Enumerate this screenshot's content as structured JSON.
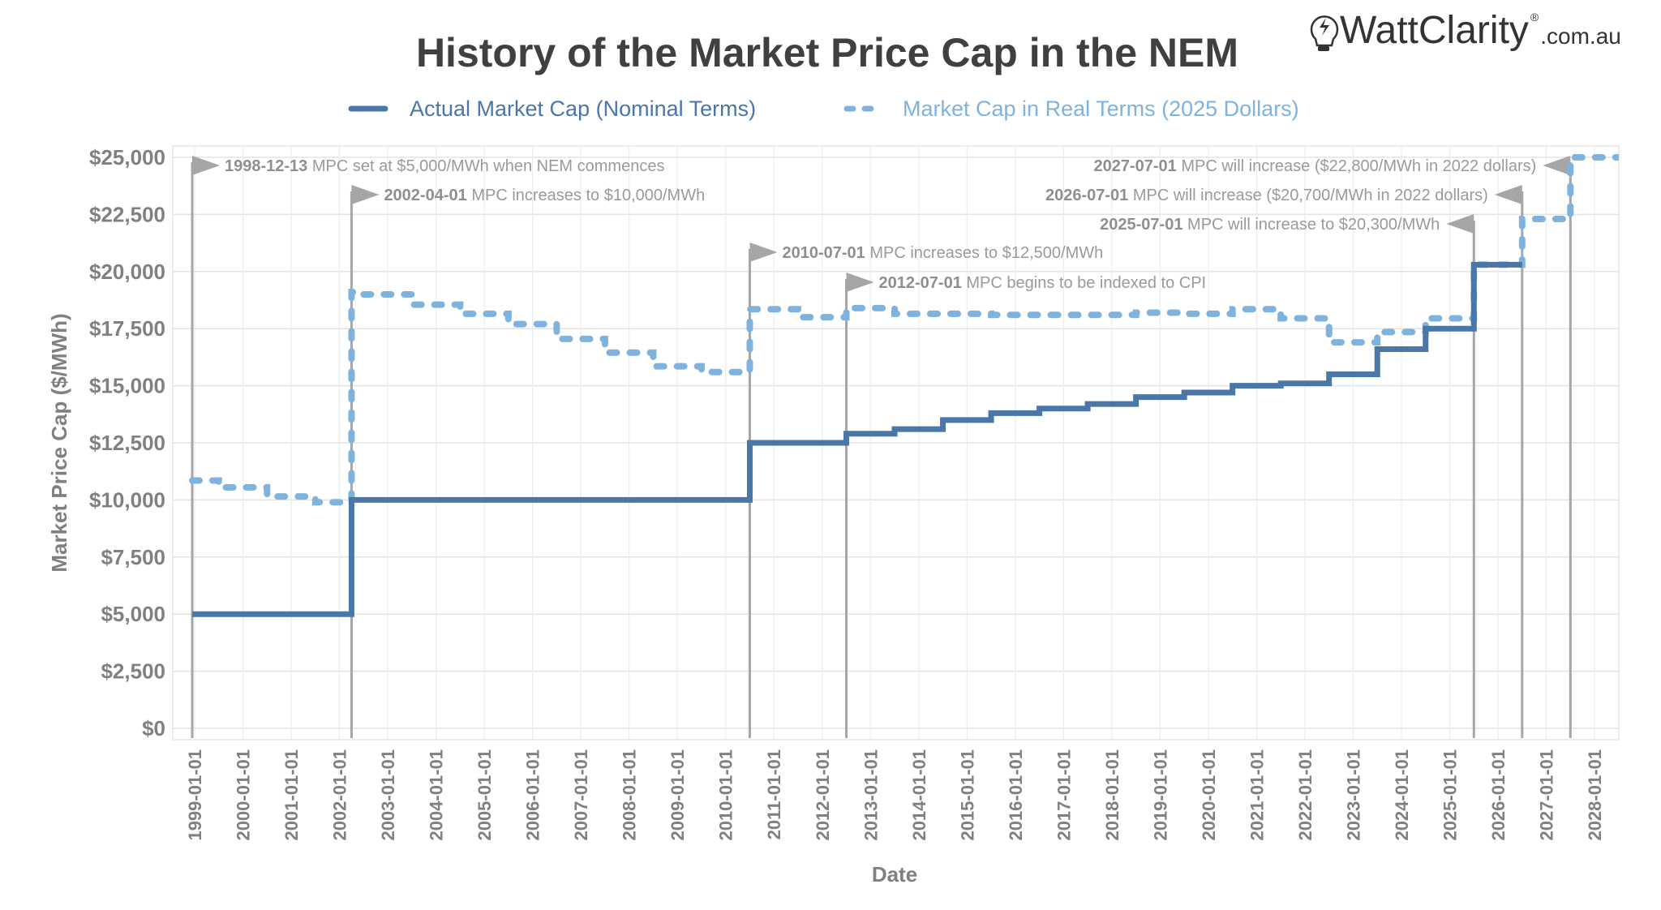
{
  "logo": {
    "brand": "WattClarity",
    "suffix": ".com.au",
    "mark": "®"
  },
  "chart_data": {
    "type": "line",
    "title": "History of the Market Price Cap in the NEM",
    "xlabel": "Date",
    "ylabel": "Market Price Cap ($/MWh)",
    "ylim": [
      0,
      25000
    ],
    "xlim": [
      "1998-07-15",
      "2028-07-01"
    ],
    "grid": true,
    "legend_position": "top",
    "yticks": [
      "$0",
      "$2,500",
      "$5,000",
      "$7,500",
      "$10,000",
      "$12,500",
      "$15,000",
      "$17,500",
      "$20,000",
      "$22,500",
      "$25,000"
    ],
    "ytick_values": [
      0,
      2500,
      5000,
      7500,
      10000,
      12500,
      15000,
      17500,
      20000,
      22500,
      25000
    ],
    "xticks": [
      "1999-01-01",
      "2000-01-01",
      "2001-01-01",
      "2002-01-01",
      "2003-01-01",
      "2004-01-01",
      "2005-01-01",
      "2006-01-01",
      "2007-01-01",
      "2008-01-01",
      "2009-01-01",
      "2010-01-01",
      "2011-01-01",
      "2012-01-01",
      "2013-01-01",
      "2014-01-01",
      "2015-01-01",
      "2016-01-01",
      "2017-01-01",
      "2018-01-01",
      "2019-01-01",
      "2020-01-01",
      "2021-01-01",
      "2022-01-01",
      "2023-01-01",
      "2024-01-01",
      "2025-01-01",
      "2026-01-01",
      "2027-01-01",
      "2028-01-01"
    ],
    "series": [
      {
        "name": "Actual Market Cap (Nominal Terms)",
        "color": "#4a76a8",
        "style": "solid-step",
        "x": [
          "1998-12-13",
          "2002-04-01",
          "2010-07-01",
          "2012-07-01",
          "2013-07-01",
          "2014-07-01",
          "2015-07-01",
          "2016-07-01",
          "2017-07-01",
          "2018-07-01",
          "2019-07-01",
          "2020-07-01",
          "2021-07-01",
          "2022-07-01",
          "2023-07-01",
          "2024-07-01",
          "2025-07-01",
          "2026-07-01"
        ],
        "y": [
          5000,
          10000,
          12500,
          12900,
          13100,
          13500,
          13800,
          14000,
          14200,
          14500,
          14700,
          15000,
          15100,
          15500,
          16600,
          17500,
          20300,
          20300
        ]
      },
      {
        "name": "Market Cap in Real Terms (2025 Dollars)",
        "color": "#7fb2dc",
        "style": "dashed-step",
        "x": [
          "1998-12-13",
          "1999-07-01",
          "2000-07-01",
          "2001-07-01",
          "2002-04-01",
          "2002-07-01",
          "2003-07-01",
          "2004-07-01",
          "2005-07-01",
          "2006-07-01",
          "2007-07-01",
          "2008-07-01",
          "2009-07-01",
          "2010-07-01",
          "2011-07-01",
          "2012-07-01",
          "2013-07-01",
          "2014-07-01",
          "2015-07-01",
          "2016-07-01",
          "2017-07-01",
          "2018-07-01",
          "2019-07-01",
          "2020-07-01",
          "2021-07-01",
          "2022-07-01",
          "2023-07-01",
          "2024-07-01",
          "2025-07-01",
          "2026-07-01",
          "2027-07-01",
          "2028-07-01"
        ],
        "y": [
          10850,
          10550,
          10150,
          9900,
          19100,
          19000,
          18550,
          18150,
          17700,
          17050,
          16450,
          15850,
          15600,
          18350,
          18000,
          18400,
          18150,
          18150,
          18100,
          18100,
          18100,
          18200,
          18150,
          18350,
          17950,
          16900,
          17350,
          17950,
          20300,
          22300,
          25000,
          25000
        ]
      }
    ],
    "annotations": [
      {
        "date": "1998-12-13",
        "text": "MPC set at $5,000/MWh when NEM commences",
        "side": "right"
      },
      {
        "date": "2002-04-01",
        "text": "MPC increases to $10,000/MWh",
        "side": "right"
      },
      {
        "date": "2010-07-01",
        "text": "MPC increases to $12,500/MWh",
        "side": "right"
      },
      {
        "date": "2012-07-01",
        "text": "MPC begins to be indexed to CPI",
        "side": "right"
      },
      {
        "date": "2025-07-01",
        "text": "MPC will increase to $20,300/MWh",
        "side": "left"
      },
      {
        "date": "2026-07-01",
        "text": "MPC will increase ($20,700/MWh in 2022 dollars)",
        "side": "left"
      },
      {
        "date": "2027-07-01",
        "text": "MPC will increase ($22,800/MWh in 2022 dollars)",
        "side": "left"
      }
    ]
  }
}
